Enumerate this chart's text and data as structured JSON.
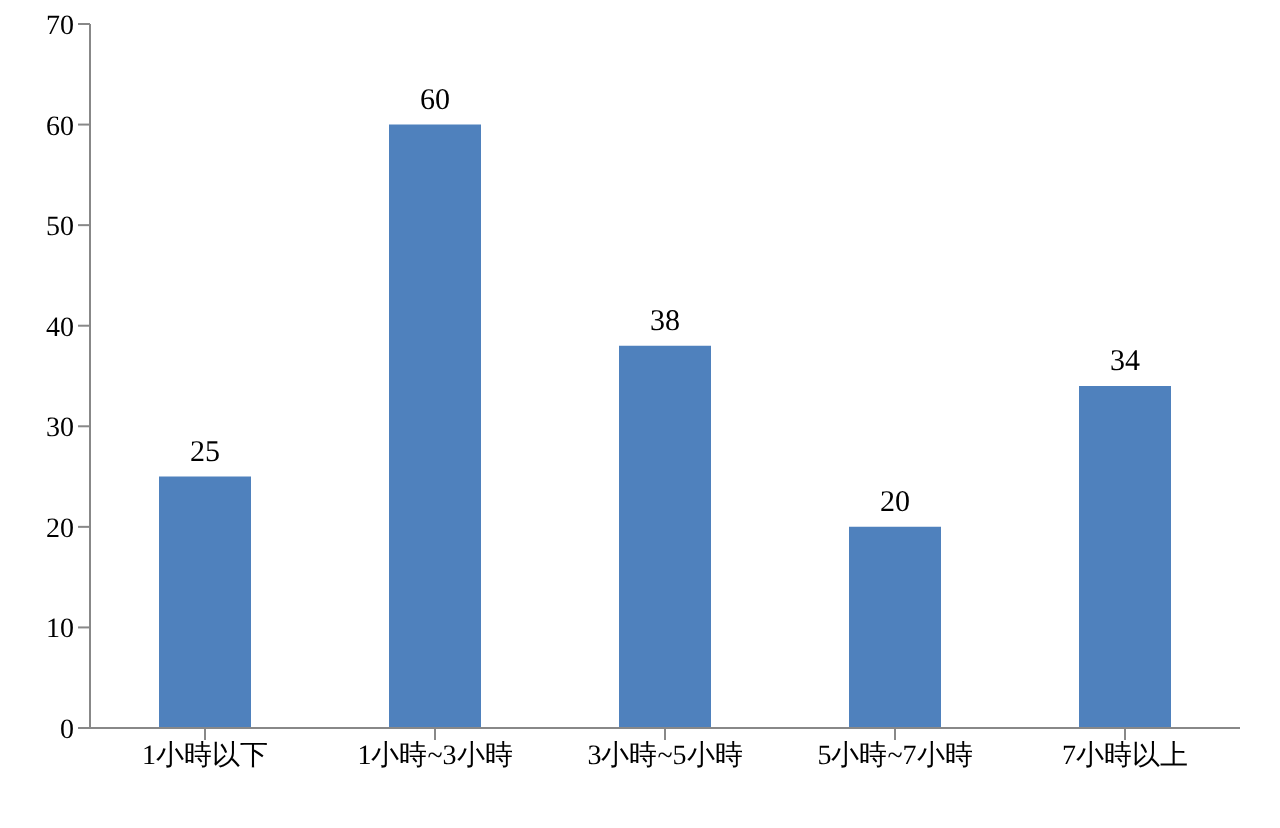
{
  "chart_data": {
    "type": "bar",
    "categories": [
      "1小時以下",
      "1小時~3小時",
      "3小時~5小時",
      "5小時~7小時",
      "7小時以上"
    ],
    "values": [
      25,
      60,
      38,
      20,
      34
    ],
    "color": "#4f81bd",
    "ylim": [
      0,
      70
    ],
    "yticks": [
      0,
      10,
      20,
      30,
      40,
      50,
      60,
      70
    ],
    "data_labels": true
  }
}
